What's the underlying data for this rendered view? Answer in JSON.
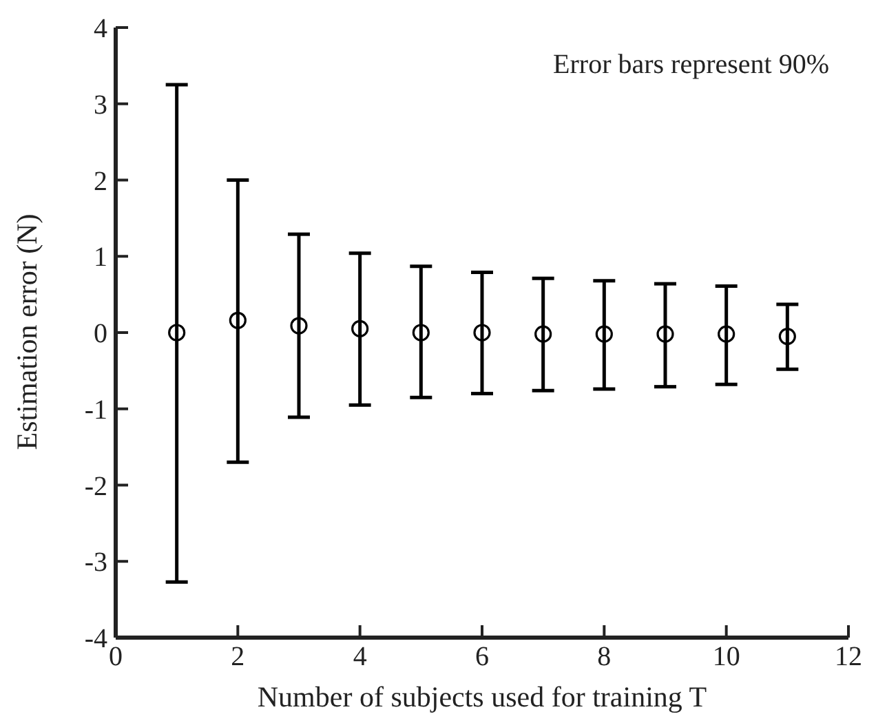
{
  "chart_data": {
    "type": "scatter",
    "xlabel": "Number of subjects used for training T",
    "ylabel": "Estimation error (N)",
    "annotations": [
      "Error bars represent 90%"
    ],
    "x": [
      1,
      2,
      3,
      4,
      5,
      6,
      7,
      8,
      9,
      10,
      11
    ],
    "series": [
      {
        "color": "#000000",
        "marker": "circle",
        "values": [
          0,
          0.16,
          0.09,
          0.05,
          0,
          0,
          -0.02,
          -0.02,
          -0.02,
          -0.02,
          -0.05
        ],
        "errors": [
          [
            -3.27,
            3.25
          ],
          [
            -1.7,
            2.0
          ],
          [
            -1.11,
            1.29
          ],
          [
            -0.95,
            1.04
          ],
          [
            -0.85,
            0.87
          ],
          [
            -0.8,
            0.79
          ],
          [
            -0.76,
            0.71
          ],
          [
            -0.74,
            0.68
          ],
          [
            -0.71,
            0.64
          ],
          [
            -0.68,
            0.61
          ],
          [
            -0.48,
            0.37
          ]
        ]
      }
    ],
    "xlim": [
      0,
      12
    ],
    "xticks": [
      0,
      2,
      4,
      6,
      8,
      10,
      12
    ],
    "ylim": [
      -4,
      4
    ],
    "yticks": [
      -4,
      -3,
      -2,
      -1,
      0,
      1,
      2,
      3,
      4
    ]
  }
}
